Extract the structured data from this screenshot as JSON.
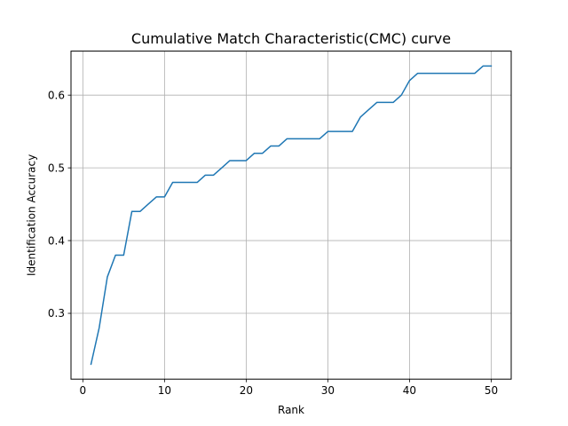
{
  "chart_data": {
    "type": "line",
    "title": "Cumulative Match Characteristic(CMC) curve",
    "xlabel": "Rank",
    "ylabel": "Identification Accuracy",
    "xlim": [
      -1.45,
      52.45
    ],
    "ylim": [
      0.2095,
      0.6605
    ],
    "xticks": [
      0,
      10,
      20,
      30,
      40,
      50
    ],
    "xtick_labels": [
      "0",
      "10",
      "20",
      "30",
      "40",
      "50"
    ],
    "yticks": [
      0.3,
      0.4,
      0.5,
      0.6
    ],
    "ytick_labels": [
      "0.3",
      "0.4",
      "0.5",
      "0.6"
    ],
    "grid": true,
    "line_color": "#1f77b4",
    "grid_color": "#b0b0b0",
    "series": [
      {
        "x": [
          1,
          2,
          3,
          4,
          5,
          6,
          7,
          8,
          9,
          10,
          11,
          12,
          13,
          14,
          15,
          16,
          17,
          18,
          19,
          20,
          21,
          22,
          23,
          24,
          25,
          26,
          27,
          28,
          29,
          30,
          31,
          32,
          33,
          34,
          35,
          36,
          37,
          38,
          39,
          40,
          41,
          42,
          43,
          44,
          45,
          46,
          47,
          48,
          49,
          50
        ],
        "values": [
          0.23,
          0.28,
          0.35,
          0.38,
          0.38,
          0.44,
          0.44,
          0.45,
          0.46,
          0.46,
          0.48,
          0.48,
          0.48,
          0.48,
          0.49,
          0.49,
          0.5,
          0.51,
          0.51,
          0.51,
          0.52,
          0.52,
          0.53,
          0.53,
          0.54,
          0.54,
          0.54,
          0.54,
          0.54,
          0.55,
          0.55,
          0.55,
          0.55,
          0.57,
          0.58,
          0.59,
          0.59,
          0.59,
          0.6,
          0.62,
          0.63,
          0.63,
          0.63,
          0.63,
          0.63,
          0.63,
          0.63,
          0.63,
          0.64,
          0.64
        ]
      }
    ]
  }
}
